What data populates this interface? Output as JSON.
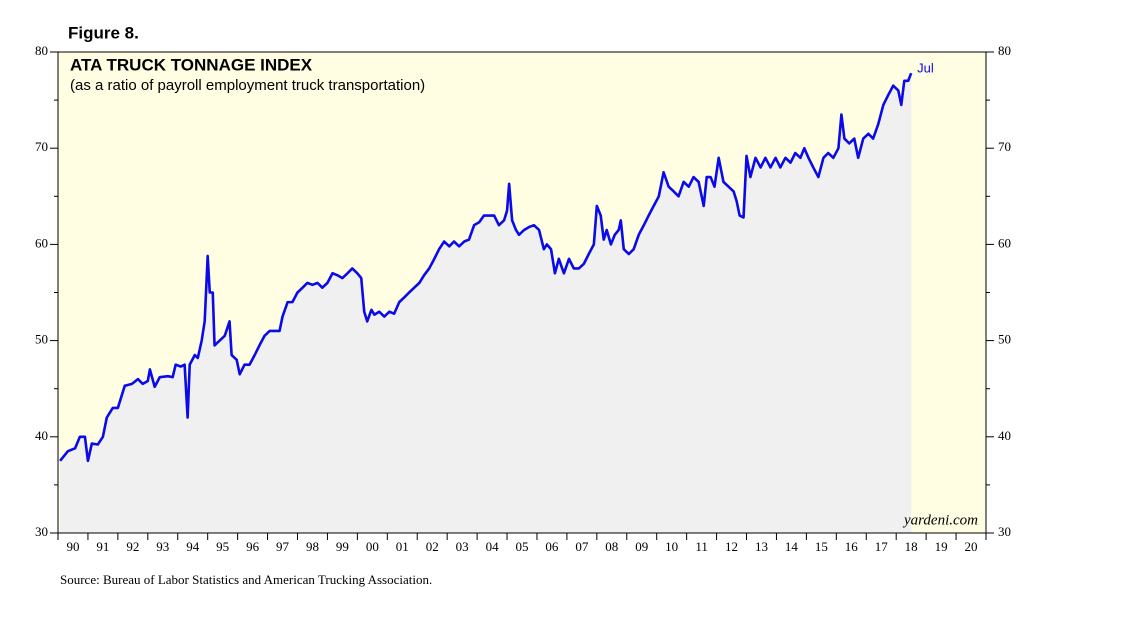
{
  "chart_data": {
    "type": "line",
    "figure_label": "Figure 8.",
    "title": "ATA TRUCK TONNAGE INDEX",
    "subtitle": "(as a ratio of payroll employment truck transportation)",
    "end_label": "Jul",
    "watermark": "yardeni.com",
    "source": "Source: Bureau of Labor Statistics and American Trucking Association.",
    "xlim": [
      1990,
      2021
    ],
    "xticks": [
      {
        "value": 1990,
        "label": "90"
      },
      {
        "value": 1991,
        "label": "91"
      },
      {
        "value": 1992,
        "label": "92"
      },
      {
        "value": 1993,
        "label": "93"
      },
      {
        "value": 1994,
        "label": "94"
      },
      {
        "value": 1995,
        "label": "95"
      },
      {
        "value": 1996,
        "label": "96"
      },
      {
        "value": 1997,
        "label": "97"
      },
      {
        "value": 1998,
        "label": "98"
      },
      {
        "value": 1999,
        "label": "99"
      },
      {
        "value": 2000,
        "label": "00"
      },
      {
        "value": 2001,
        "label": "01"
      },
      {
        "value": 2002,
        "label": "02"
      },
      {
        "value": 2003,
        "label": "03"
      },
      {
        "value": 2004,
        "label": "04"
      },
      {
        "value": 2005,
        "label": "05"
      },
      {
        "value": 2006,
        "label": "06"
      },
      {
        "value": 2007,
        "label": "07"
      },
      {
        "value": 2008,
        "label": "08"
      },
      {
        "value": 2009,
        "label": "09"
      },
      {
        "value": 2010,
        "label": "10"
      },
      {
        "value": 2011,
        "label": "11"
      },
      {
        "value": 2012,
        "label": "12"
      },
      {
        "value": 2013,
        "label": "13"
      },
      {
        "value": 2014,
        "label": "14"
      },
      {
        "value": 2015,
        "label": "15"
      },
      {
        "value": 2016,
        "label": "16"
      },
      {
        "value": 2017,
        "label": "17"
      },
      {
        "value": 2018,
        "label": "18"
      },
      {
        "value": 2019,
        "label": "19"
      },
      {
        "value": 2020,
        "label": "20"
      }
    ],
    "ylim": [
      30,
      80
    ],
    "yticks": [
      30,
      40,
      50,
      60,
      70,
      80
    ],
    "yminorticks": [
      35,
      45,
      55,
      65,
      75
    ],
    "background": "#fffde2",
    "area_color": "#f0f0f0",
    "series": [
      {
        "color": "#0a0aea",
        "x": [
          1990.07,
          1990.33,
          1990.57,
          1990.73,
          1990.9,
          1991.0,
          1991.13,
          1991.33,
          1991.5,
          1991.63,
          1991.83,
          1992.0,
          1992.1,
          1992.23,
          1992.47,
          1992.67,
          1992.83,
          1993.0,
          1993.07,
          1993.23,
          1993.4,
          1993.67,
          1993.83,
          1993.93,
          1994.1,
          1994.23,
          1994.33,
          1994.4,
          1994.57,
          1994.67,
          1994.8,
          1994.9,
          1995.0,
          1995.07,
          1995.17,
          1995.23,
          1995.4,
          1995.57,
          1995.73,
          1995.8,
          1995.97,
          1996.07,
          1996.23,
          1996.4,
          1996.57,
          1996.73,
          1996.9,
          1997.07,
          1997.23,
          1997.4,
          1997.5,
          1997.67,
          1997.83,
          1998.0,
          1998.17,
          1998.33,
          1998.5,
          1998.67,
          1998.83,
          1999.0,
          1999.17,
          1999.33,
          1999.5,
          1999.67,
          1999.83,
          2000.0,
          2000.13,
          2000.23,
          2000.33,
          2000.47,
          2000.57,
          2000.73,
          2000.9,
          2001.07,
          2001.23,
          2001.4,
          2001.57,
          2001.73,
          2001.9,
          2002.07,
          2002.23,
          2002.4,
          2002.57,
          2002.73,
          2002.9,
          2003.07,
          2003.23,
          2003.4,
          2003.57,
          2003.73,
          2003.9,
          2004.07,
          2004.23,
          2004.4,
          2004.57,
          2004.73,
          2004.9,
          2005.0,
          2005.07,
          2005.17,
          2005.3,
          2005.4,
          2005.57,
          2005.73,
          2005.9,
          2006.07,
          2006.23,
          2006.33,
          2006.47,
          2006.6,
          2006.73,
          2006.9,
          2007.07,
          2007.23,
          2007.4,
          2007.57,
          2007.73,
          2007.9,
          2008.0,
          2008.13,
          2008.23,
          2008.33,
          2008.47,
          2008.6,
          2008.73,
          2008.8,
          2008.9,
          2009.07,
          2009.23,
          2009.4,
          2009.57,
          2009.73,
          2009.9,
          2010.07,
          2010.23,
          2010.4,
          2010.57,
          2010.73,
          2010.9,
          2011.07,
          2011.23,
          2011.4,
          2011.57,
          2011.67,
          2011.8,
          2011.93,
          2012.07,
          2012.23,
          2012.4,
          2012.57,
          2012.67,
          2012.77,
          2012.9,
          2013.0,
          2013.13,
          2013.3,
          2013.47,
          2013.63,
          2013.8,
          2013.97,
          2014.13,
          2014.3,
          2014.47,
          2014.63,
          2014.8,
          2014.93,
          2015.07,
          2015.23,
          2015.4,
          2015.57,
          2015.73,
          2015.9,
          2016.07,
          2016.17,
          2016.27,
          2016.43,
          2016.6,
          2016.73,
          2016.9,
          2017.07,
          2017.23,
          2017.4,
          2017.57,
          2017.73,
          2017.9,
          2018.07,
          2018.17,
          2018.27,
          2018.4,
          2018.5
        ],
        "values": [
          37.5,
          38.5,
          38.8,
          40.0,
          40.0,
          37.5,
          39.3,
          39.2,
          40.0,
          42.0,
          43.0,
          43.0,
          44.0,
          45.3,
          45.5,
          46.0,
          45.5,
          45.8,
          47.0,
          45.2,
          46.2,
          46.3,
          46.2,
          47.5,
          47.3,
          47.5,
          42.0,
          47.5,
          48.5,
          48.2,
          50.0,
          52.0,
          58.8,
          55.0,
          55.0,
          49.5,
          50.0,
          50.5,
          52.0,
          48.5,
          48.0,
          46.5,
          47.5,
          47.5,
          48.5,
          49.5,
          50.5,
          51.0,
          51.0,
          51.0,
          52.5,
          54.0,
          54.0,
          55.0,
          55.5,
          56.0,
          55.8,
          56.0,
          55.5,
          56.0,
          57.0,
          56.8,
          56.5,
          57.0,
          57.5,
          57.0,
          56.5,
          53.0,
          52.0,
          53.2,
          52.7,
          53.0,
          52.5,
          53.0,
          52.8,
          54.0,
          54.5,
          55.0,
          55.5,
          56.0,
          56.8,
          57.5,
          58.5,
          59.5,
          60.3,
          59.8,
          60.3,
          59.8,
          60.3,
          60.5,
          62.0,
          62.3,
          63.0,
          63.0,
          63.0,
          62.0,
          62.5,
          63.5,
          66.3,
          62.5,
          61.5,
          61.0,
          61.5,
          61.8,
          62.0,
          61.5,
          59.5,
          60.0,
          59.5,
          57.0,
          58.5,
          57.0,
          58.5,
          57.5,
          57.5,
          58.0,
          59.0,
          60.0,
          64.0,
          63.0,
          60.5,
          61.5,
          60.0,
          61.0,
          61.5,
          62.5,
          59.5,
          59.0,
          59.5,
          61.0,
          62.0,
          63.0,
          64.0,
          65.0,
          67.5,
          66.0,
          65.5,
          65.0,
          66.5,
          66.0,
          67.0,
          66.5,
          64.0,
          67.0,
          67.0,
          66.0,
          69.0,
          66.5,
          66.0,
          65.5,
          64.5,
          63.0,
          62.8,
          69.2,
          67.0,
          69.0,
          68.0,
          69.0,
          68.0,
          69.0,
          68.0,
          69.0,
          68.5,
          69.5,
          69.0,
          70.0,
          69.0,
          68.0,
          67.0,
          69.0,
          69.5,
          69.0,
          70.0,
          73.5,
          71.0,
          70.5,
          71.0,
          69.0,
          71.0,
          71.5,
          71.0,
          72.5,
          74.5,
          75.5,
          76.5,
          76.0,
          74.5,
          77.0,
          77.0,
          77.8
        ]
      }
    ]
  }
}
